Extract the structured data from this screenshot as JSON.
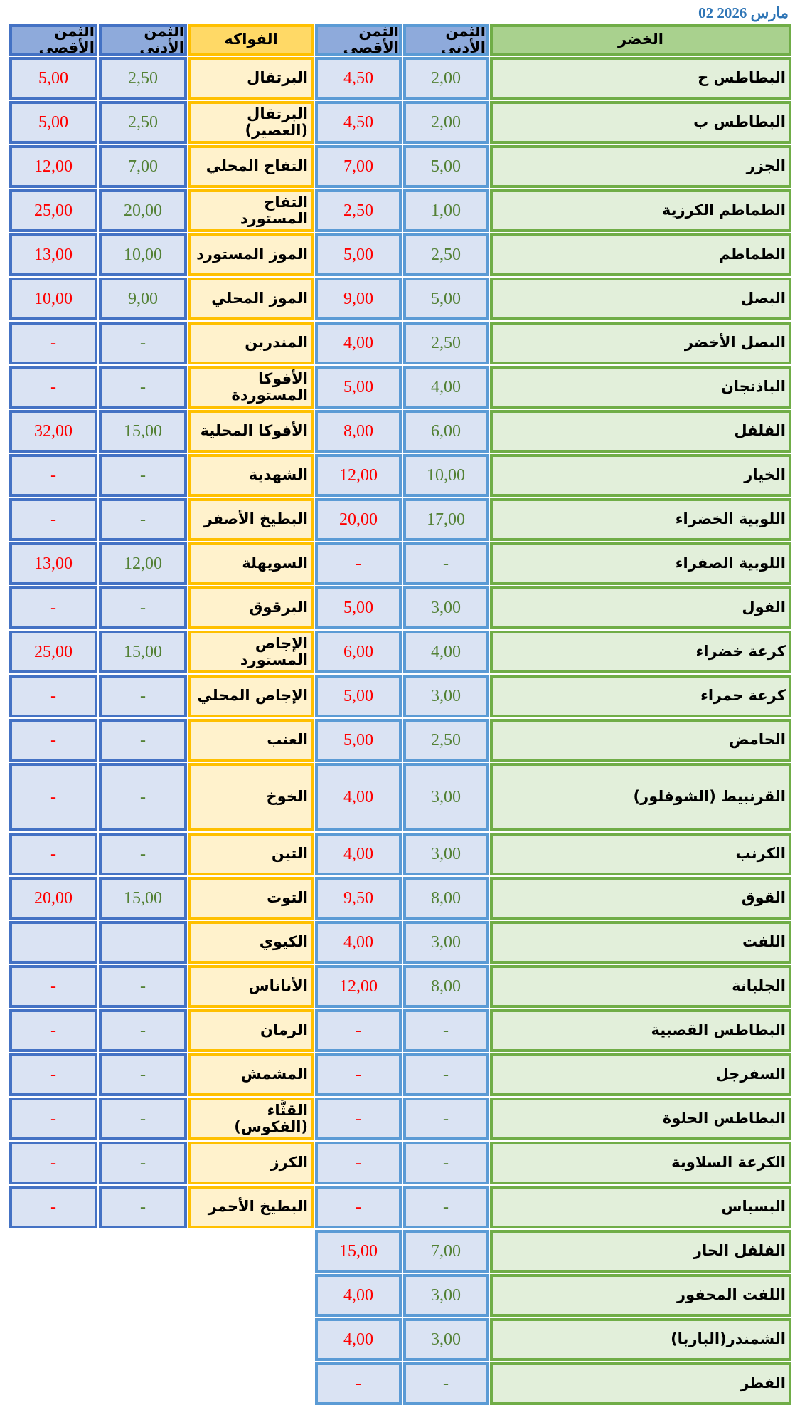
{
  "date": "02 مارس 2026",
  "headers": {
    "veg": "الخضر",
    "fruit": "الفواكه",
    "min": "الثمن الأدنى",
    "max": "الثمن الأقصى"
  },
  "vegetables": [
    {
      "name": "البطاطس ح",
      "min": "2,00",
      "max": "4,50"
    },
    {
      "name": "البطاطس ب",
      "min": "2,00",
      "max": "4,50"
    },
    {
      "name": "الجزر",
      "min": "5,00",
      "max": "7,00"
    },
    {
      "name": "الطماطم الكرزية",
      "min": "1,00",
      "max": "2,50"
    },
    {
      "name": "الطماطم",
      "min": "2,50",
      "max": "5,00"
    },
    {
      "name": "البصل",
      "min": "5,00",
      "max": "9,00"
    },
    {
      "name": "البصل الأخضر",
      "min": "2,50",
      "max": "4,00"
    },
    {
      "name": "الباذنجان",
      "min": "4,00",
      "max": "5,00"
    },
    {
      "name": "الفلفل",
      "min": "6,00",
      "max": "8,00"
    },
    {
      "name": "الخيار",
      "min": "10,00",
      "max": "12,00"
    },
    {
      "name": "اللوبية الخضراء",
      "min": "17,00",
      "max": "20,00"
    },
    {
      "name": "اللوبية الصفراء",
      "min": "-",
      "max": "-"
    },
    {
      "name": "الفول",
      "min": "3,00",
      "max": "5,00"
    },
    {
      "name": "كرعة خضراء",
      "min": "4,00",
      "max": "6,00"
    },
    {
      "name": "كرعة حمراء",
      "min": "3,00",
      "max": "5,00"
    },
    {
      "name": "الحامض",
      "min": "2,50",
      "max": "5,00"
    },
    {
      "name": "القرنبيط (الشوفلور)",
      "min": "3,00",
      "max": "4,00"
    },
    {
      "name": "الكرنب",
      "min": "3,00",
      "max": "4,00"
    },
    {
      "name": "القوق",
      "min": "8,00",
      "max": "9,50"
    },
    {
      "name": "اللفت",
      "min": "3,00",
      "max": "4,00"
    },
    {
      "name": "الجلبانة",
      "min": "8,00",
      "max": "12,00"
    },
    {
      "name": "البطاطس القصبية",
      "min": "-",
      "max": "-"
    },
    {
      "name": "السفرجل",
      "min": "-",
      "max": "-"
    },
    {
      "name": "البطاطس الحلوة",
      "min": "-",
      "max": "-"
    },
    {
      "name": "الكرعة السلاوية",
      "min": "-",
      "max": "-"
    },
    {
      "name": "البسباس",
      "min": "-",
      "max": "-"
    },
    {
      "name": "الفلفل الحار",
      "min": "7,00",
      "max": "15,00"
    },
    {
      "name": "اللفت المحفور",
      "min": "3,00",
      "max": "4,00"
    },
    {
      "name": "الشمندر(الباربا)",
      "min": "3,00",
      "max": "4,00"
    },
    {
      "name": "الفطر",
      "min": "-",
      "max": "-"
    }
  ],
  "fruits": [
    {
      "name": "البرتقال",
      "min": "2,50",
      "max": "5,00"
    },
    {
      "name": "البرتقال (العصير)",
      "min": "2,50",
      "max": "5,00"
    },
    {
      "name": "التفاح المحلي",
      "min": "7,00",
      "max": "12,00"
    },
    {
      "name": "التفاح المستورد",
      "min": "20,00",
      "max": "25,00"
    },
    {
      "name": "الموز المستورد",
      "min": "10,00",
      "max": "13,00"
    },
    {
      "name": "الموز المحلي",
      "min": "9,00",
      "max": "10,00"
    },
    {
      "name": "المندرين",
      "min": "-",
      "max": "-"
    },
    {
      "name": "الأفوكا المستوردة",
      "min": "-",
      "max": "-"
    },
    {
      "name": "الأفوكا المحلية",
      "min": "15,00",
      "max": "32,00"
    },
    {
      "name": "الشهدية",
      "min": "-",
      "max": "-"
    },
    {
      "name": "البطيخ الأصفر",
      "min": "-",
      "max": "-"
    },
    {
      "name": "السويهلة",
      "min": "12,00",
      "max": "13,00"
    },
    {
      "name": "البرقوق",
      "min": "-",
      "max": "-"
    },
    {
      "name": "الإجاص المستورد",
      "min": "15,00",
      "max": "25,00"
    },
    {
      "name": "الإجاص المحلي",
      "min": "-",
      "max": "-"
    },
    {
      "name": "العنب",
      "min": "-",
      "max": "-"
    },
    {
      "name": "الخوخ",
      "min": "-",
      "max": "-"
    },
    {
      "name": "التين",
      "min": "-",
      "max": "-"
    },
    {
      "name": "التوت",
      "min": "15,00",
      "max": "20,00"
    },
    {
      "name": "الكيوي",
      "min": "",
      "max": ""
    },
    {
      "name": "الأناناس",
      "min": "-",
      "max": "-"
    },
    {
      "name": "الرمان",
      "min": "-",
      "max": "-"
    },
    {
      "name": "المشمش",
      "min": "-",
      "max": "-"
    },
    {
      "name": "القثَّاء (الفكوس)",
      "min": "-",
      "max": "-"
    },
    {
      "name": "الكرز",
      "min": "-",
      "max": "-"
    },
    {
      "name": "البطيخ الأحمر",
      "min": "-",
      "max": "-"
    }
  ],
  "colors": {
    "date_blue": "#2e75b6",
    "red_max": "#ff0000",
    "green_min": "#538135",
    "veg_header_bg": "#a9d18e",
    "veg_border": "#70ad47",
    "veg_cell_bg": "#e2efda",
    "fruit_header_bg": "#ffd966",
    "fruit_border": "#ffc000",
    "fruit_cell_bg": "#fff2cc",
    "price_header_bg": "#8eaadb",
    "price_cell_bg": "#dae3f3",
    "veg_price_border": "#5b9bd5",
    "fruit_price_border": "#4472c4"
  }
}
